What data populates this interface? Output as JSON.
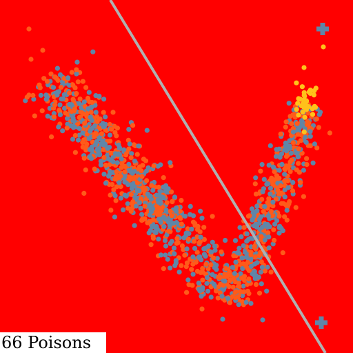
{
  "counter": {
    "text": "66 Poisons"
  },
  "colors": {
    "background": "#ff0000",
    "divider": "#b0b0b0",
    "point_blue": "#5f86a8",
    "point_orange": "#ff5a1a",
    "point_yellow": "#ffc21a",
    "marker": "#5f86a8",
    "counter_bg": "#ffffff"
  },
  "icons": {
    "markers": [
      "plus-icon",
      "plus-icon"
    ]
  }
}
